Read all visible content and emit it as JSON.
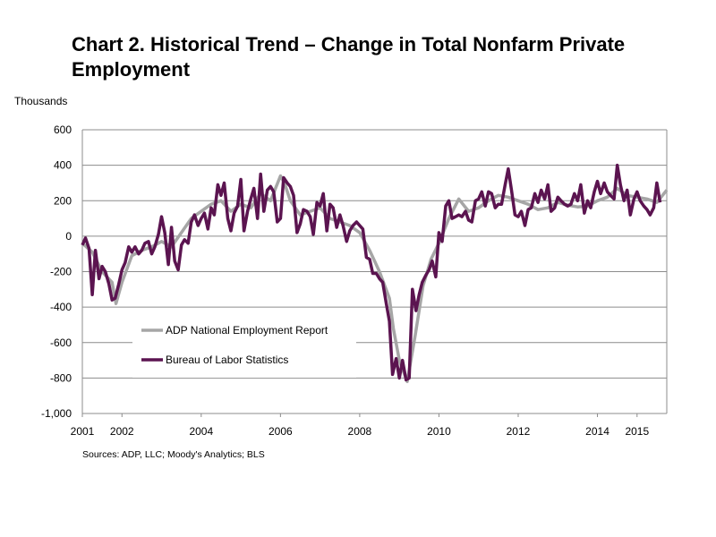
{
  "chart_data": {
    "type": "line",
    "title": "Chart 2. Historical Trend – Change in Total Nonfarm Private Employment",
    "ylabel": "Thousands",
    "xlabel": "",
    "source": "Sources: ADP, LLC; Moody's Analytics; BLS",
    "ylim": [
      -1000,
      600
    ],
    "xlim": [
      2001.0,
      2015.75
    ],
    "y_ticks": [
      600,
      400,
      200,
      0,
      -200,
      -400,
      -600,
      -800,
      -1000
    ],
    "y_tick_labels": [
      "600",
      "400",
      "200",
      "0",
      "-200",
      "-400",
      "-600",
      "-800",
      "-1,000"
    ],
    "x_ticks": [
      2001,
      2002,
      2004,
      2006,
      2008,
      2010,
      2012,
      2014,
      2015
    ],
    "grid": true,
    "legend_position": "lower-left",
    "series": [
      {
        "name": "ADP National Employment Report",
        "color": "#a6a6a6",
        "points": [
          [
            2001.0,
            -40
          ],
          [
            2001.25,
            -90
          ],
          [
            2001.5,
            -200
          ],
          [
            2001.75,
            -260
          ],
          [
            2001.85,
            -380
          ],
          [
            2002.0,
            -260
          ],
          [
            2002.25,
            -110
          ],
          [
            2002.5,
            -80
          ],
          [
            2002.75,
            -60
          ],
          [
            2003.0,
            -30
          ],
          [
            2003.25,
            -60
          ],
          [
            2003.5,
            20
          ],
          [
            2003.75,
            100
          ],
          [
            2004.0,
            140
          ],
          [
            2004.25,
            180
          ],
          [
            2004.5,
            200
          ],
          [
            2004.75,
            140
          ],
          [
            2005.0,
            180
          ],
          [
            2005.25,
            160
          ],
          [
            2005.5,
            240
          ],
          [
            2005.75,
            200
          ],
          [
            2006.0,
            340
          ],
          [
            2006.1,
            300
          ],
          [
            2006.25,
            200
          ],
          [
            2006.5,
            120
          ],
          [
            2006.75,
            140
          ],
          [
            2007.0,
            160
          ],
          [
            2007.25,
            100
          ],
          [
            2007.5,
            80
          ],
          [
            2007.75,
            60
          ],
          [
            2008.0,
            20
          ],
          [
            2008.25,
            -80
          ],
          [
            2008.5,
            -200
          ],
          [
            2008.75,
            -350
          ],
          [
            2008.85,
            -520
          ],
          [
            2009.0,
            -700
          ],
          [
            2009.2,
            -820
          ],
          [
            2009.4,
            -560
          ],
          [
            2009.6,
            -280
          ],
          [
            2009.8,
            -130
          ],
          [
            2010.0,
            -40
          ],
          [
            2010.25,
            100
          ],
          [
            2010.5,
            210
          ],
          [
            2010.75,
            140
          ],
          [
            2011.0,
            160
          ],
          [
            2011.25,
            200
          ],
          [
            2011.5,
            230
          ],
          [
            2011.75,
            220
          ],
          [
            2012.0,
            200
          ],
          [
            2012.25,
            180
          ],
          [
            2012.5,
            150
          ],
          [
            2012.75,
            160
          ],
          [
            2013.0,
            190
          ],
          [
            2013.25,
            175
          ],
          [
            2013.5,
            165
          ],
          [
            2013.75,
            170
          ],
          [
            2014.0,
            200
          ],
          [
            2014.25,
            220
          ],
          [
            2014.5,
            270
          ],
          [
            2014.75,
            230
          ],
          [
            2015.0,
            220
          ],
          [
            2015.25,
            210
          ],
          [
            2015.5,
            190
          ],
          [
            2015.75,
            260
          ]
        ]
      },
      {
        "name": "Bureau of Labor Statistics",
        "color": "#5b1450",
        "points": [
          [
            2001.0,
            -50
          ],
          [
            2001.08,
            -10
          ],
          [
            2001.17,
            -70
          ],
          [
            2001.25,
            -330
          ],
          [
            2001.33,
            -80
          ],
          [
            2001.42,
            -240
          ],
          [
            2001.5,
            -170
          ],
          [
            2001.58,
            -200
          ],
          [
            2001.67,
            -270
          ],
          [
            2001.75,
            -360
          ],
          [
            2001.83,
            -350
          ],
          [
            2001.92,
            -270
          ],
          [
            2002.0,
            -190
          ],
          [
            2002.08,
            -150
          ],
          [
            2002.17,
            -60
          ],
          [
            2002.25,
            -90
          ],
          [
            2002.33,
            -60
          ],
          [
            2002.42,
            -100
          ],
          [
            2002.5,
            -80
          ],
          [
            2002.58,
            -40
          ],
          [
            2002.67,
            -30
          ],
          [
            2002.75,
            -100
          ],
          [
            2002.83,
            -60
          ],
          [
            2002.92,
            10
          ],
          [
            2003.0,
            110
          ],
          [
            2003.08,
            20
          ],
          [
            2003.17,
            -160
          ],
          [
            2003.25,
            50
          ],
          [
            2003.33,
            -140
          ],
          [
            2003.42,
            -190
          ],
          [
            2003.5,
            -50
          ],
          [
            2003.58,
            -20
          ],
          [
            2003.67,
            -40
          ],
          [
            2003.75,
            80
          ],
          [
            2003.83,
            120
          ],
          [
            2003.92,
            60
          ],
          [
            2004.0,
            100
          ],
          [
            2004.08,
            130
          ],
          [
            2004.17,
            40
          ],
          [
            2004.25,
            160
          ],
          [
            2004.33,
            120
          ],
          [
            2004.42,
            290
          ],
          [
            2004.5,
            230
          ],
          [
            2004.58,
            300
          ],
          [
            2004.67,
            100
          ],
          [
            2004.75,
            30
          ],
          [
            2004.83,
            130
          ],
          [
            2004.92,
            170
          ],
          [
            2005.0,
            320
          ],
          [
            2005.08,
            30
          ],
          [
            2005.17,
            140
          ],
          [
            2005.25,
            210
          ],
          [
            2005.33,
            270
          ],
          [
            2005.42,
            100
          ],
          [
            2005.5,
            350
          ],
          [
            2005.58,
            140
          ],
          [
            2005.67,
            260
          ],
          [
            2005.75,
            280
          ],
          [
            2005.83,
            250
          ],
          [
            2005.92,
            80
          ],
          [
            2006.0,
            100
          ],
          [
            2006.08,
            330
          ],
          [
            2006.17,
            300
          ],
          [
            2006.25,
            280
          ],
          [
            2006.33,
            230
          ],
          [
            2006.42,
            20
          ],
          [
            2006.5,
            70
          ],
          [
            2006.58,
            150
          ],
          [
            2006.67,
            140
          ],
          [
            2006.75,
            110
          ],
          [
            2006.83,
            10
          ],
          [
            2006.92,
            190
          ],
          [
            2007.0,
            170
          ],
          [
            2007.08,
            240
          ],
          [
            2007.17,
            30
          ],
          [
            2007.25,
            180
          ],
          [
            2007.33,
            160
          ],
          [
            2007.42,
            50
          ],
          [
            2007.5,
            120
          ],
          [
            2007.58,
            60
          ],
          [
            2007.67,
            -30
          ],
          [
            2007.75,
            30
          ],
          [
            2007.83,
            60
          ],
          [
            2007.92,
            80
          ],
          [
            2008.0,
            60
          ],
          [
            2008.08,
            40
          ],
          [
            2008.17,
            -120
          ],
          [
            2008.25,
            -130
          ],
          [
            2008.33,
            -210
          ],
          [
            2008.42,
            -210
          ],
          [
            2008.5,
            -240
          ],
          [
            2008.58,
            -260
          ],
          [
            2008.67,
            -380
          ],
          [
            2008.75,
            -480
          ],
          [
            2008.83,
            -780
          ],
          [
            2008.92,
            -690
          ],
          [
            2009.0,
            -800
          ],
          [
            2009.08,
            -700
          ],
          [
            2009.17,
            -810
          ],
          [
            2009.25,
            -800
          ],
          [
            2009.33,
            -300
          ],
          [
            2009.42,
            -420
          ],
          [
            2009.5,
            -330
          ],
          [
            2009.58,
            -260
          ],
          [
            2009.67,
            -220
          ],
          [
            2009.75,
            -190
          ],
          [
            2009.83,
            -140
          ],
          [
            2009.92,
            -230
          ],
          [
            2010.0,
            20
          ],
          [
            2010.08,
            -30
          ],
          [
            2010.17,
            170
          ],
          [
            2010.25,
            200
          ],
          [
            2010.33,
            100
          ],
          [
            2010.42,
            110
          ],
          [
            2010.5,
            120
          ],
          [
            2010.58,
            110
          ],
          [
            2010.67,
            140
          ],
          [
            2010.75,
            90
          ],
          [
            2010.83,
            80
          ],
          [
            2010.92,
            200
          ],
          [
            2011.0,
            210
          ],
          [
            2011.08,
            250
          ],
          [
            2011.17,
            170
          ],
          [
            2011.25,
            250
          ],
          [
            2011.33,
            240
          ],
          [
            2011.42,
            160
          ],
          [
            2011.5,
            180
          ],
          [
            2011.58,
            180
          ],
          [
            2011.67,
            290
          ],
          [
            2011.75,
            380
          ],
          [
            2011.83,
            260
          ],
          [
            2011.92,
            120
          ],
          [
            2012.0,
            110
          ],
          [
            2012.08,
            140
          ],
          [
            2012.17,
            60
          ],
          [
            2012.25,
            150
          ],
          [
            2012.33,
            160
          ],
          [
            2012.42,
            240
          ],
          [
            2012.5,
            190
          ],
          [
            2012.58,
            260
          ],
          [
            2012.67,
            210
          ],
          [
            2012.75,
            290
          ],
          [
            2012.83,
            140
          ],
          [
            2012.92,
            160
          ],
          [
            2013.0,
            220
          ],
          [
            2013.08,
            200
          ],
          [
            2013.17,
            180
          ],
          [
            2013.25,
            170
          ],
          [
            2013.33,
            180
          ],
          [
            2013.42,
            240
          ],
          [
            2013.5,
            200
          ],
          [
            2013.58,
            290
          ],
          [
            2013.67,
            130
          ],
          [
            2013.75,
            200
          ],
          [
            2013.83,
            160
          ],
          [
            2013.92,
            250
          ],
          [
            2014.0,
            310
          ],
          [
            2014.08,
            240
          ],
          [
            2014.17,
            300
          ],
          [
            2014.25,
            250
          ],
          [
            2014.33,
            230
          ],
          [
            2014.42,
            210
          ],
          [
            2014.5,
            400
          ],
          [
            2014.58,
            290
          ],
          [
            2014.67,
            200
          ],
          [
            2014.75,
            260
          ],
          [
            2014.83,
            120
          ],
          [
            2014.92,
            210
          ],
          [
            2015.0,
            250
          ],
          [
            2015.08,
            200
          ],
          [
            2015.17,
            170
          ],
          [
            2015.25,
            150
          ],
          [
            2015.33,
            120
          ],
          [
            2015.42,
            160
          ],
          [
            2015.5,
            300
          ],
          [
            2015.58,
            190
          ]
        ]
      }
    ]
  }
}
